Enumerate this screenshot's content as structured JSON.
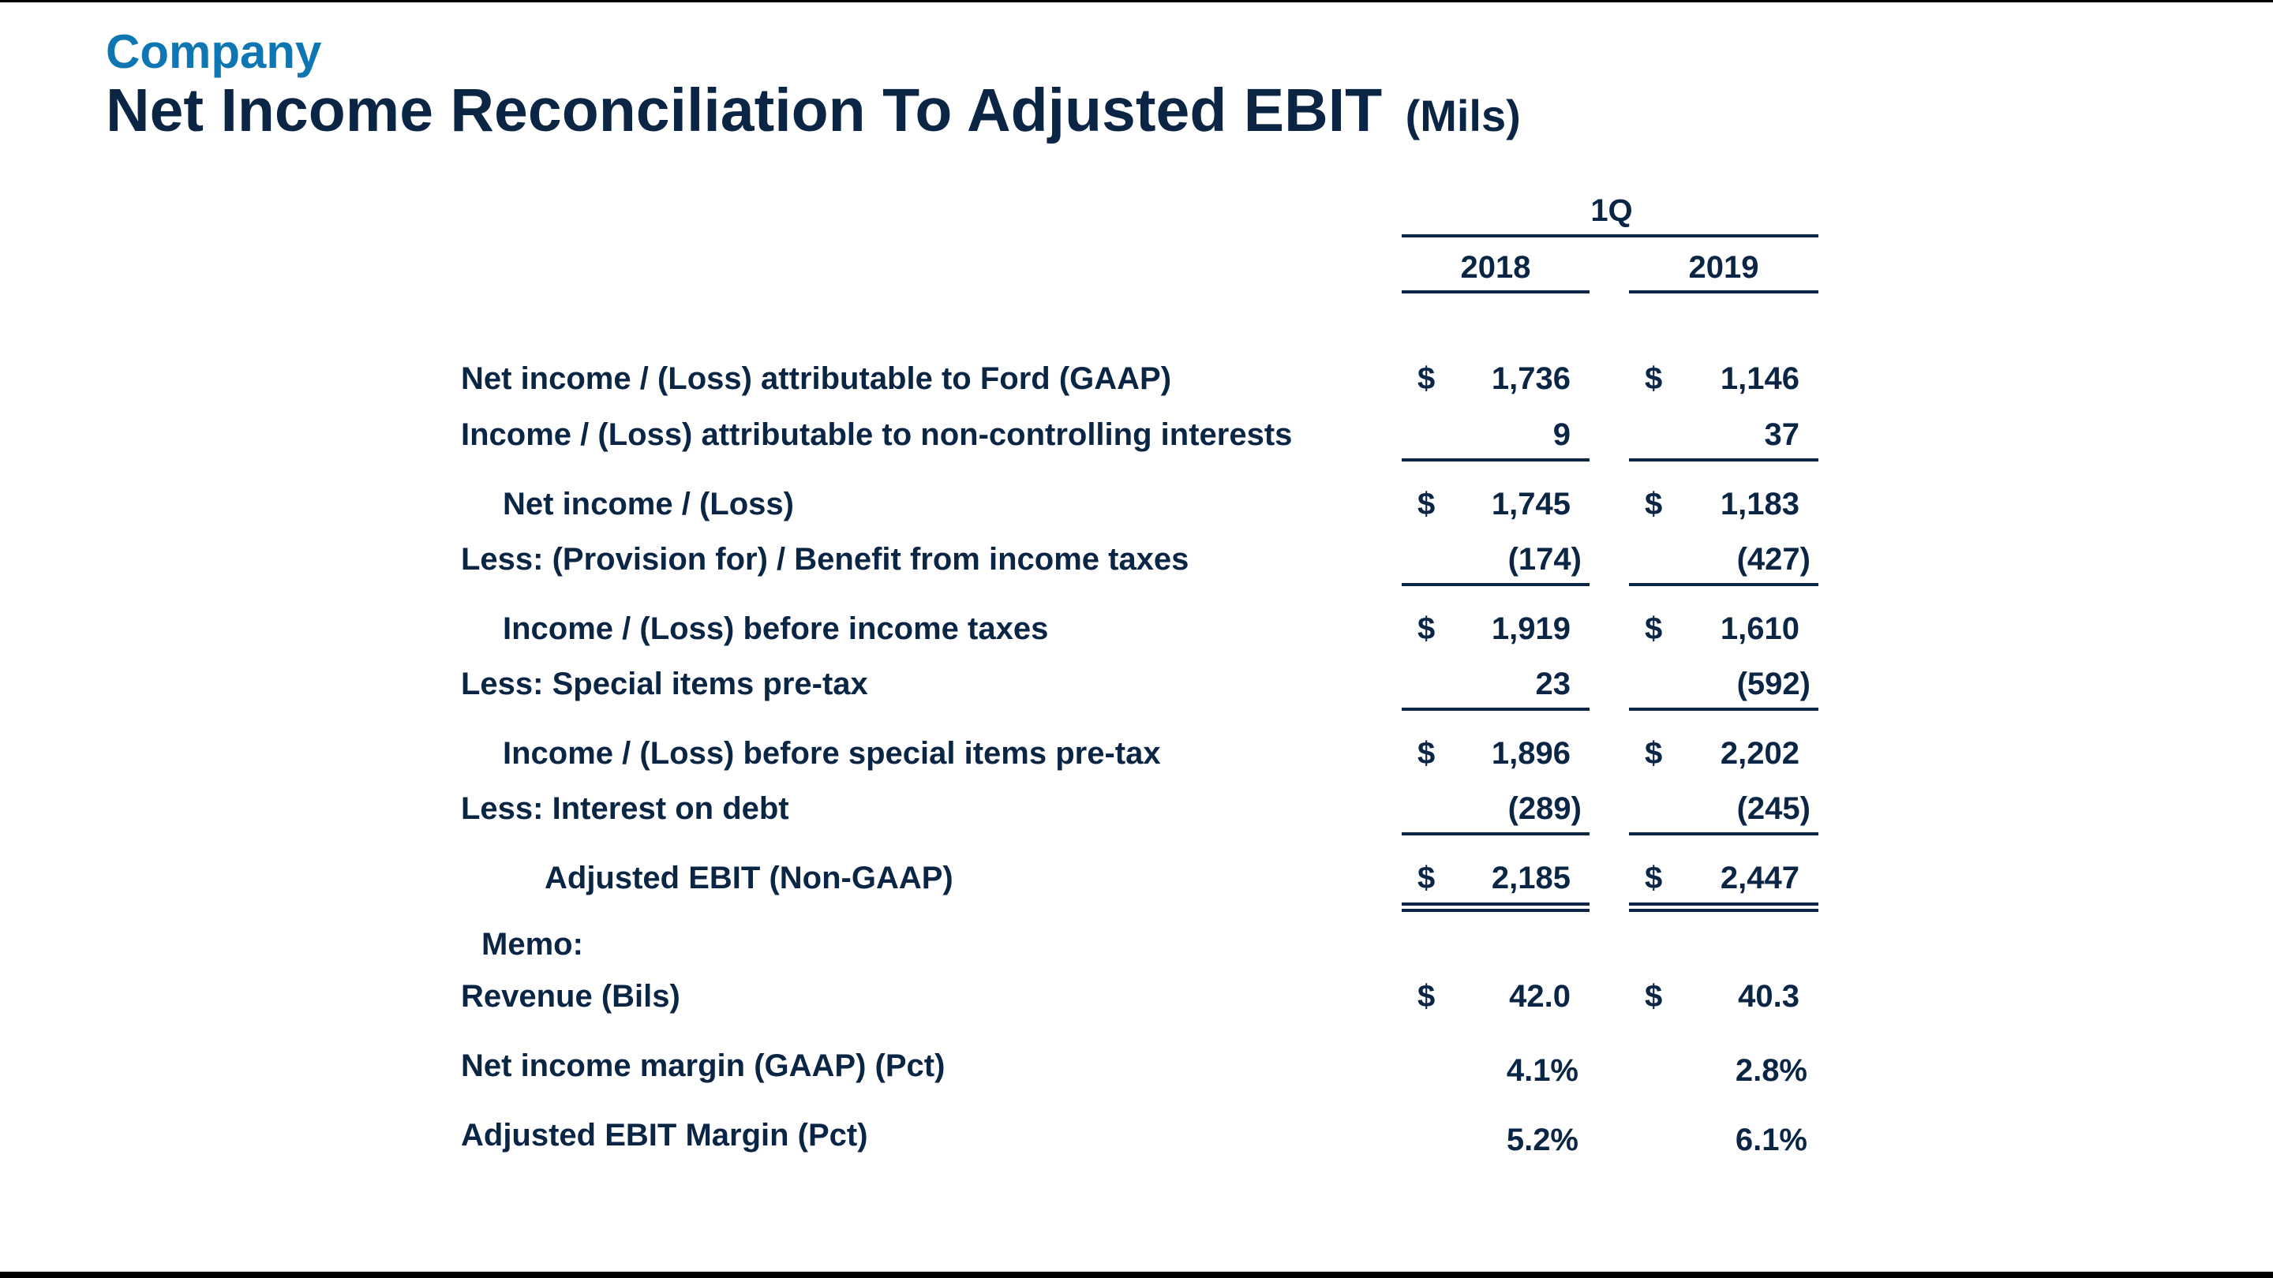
{
  "header": {
    "company": "Company",
    "title": "Net Income Reconciliation To Adjusted EBIT",
    "units": "(Mils)"
  },
  "table": {
    "period_label": "1Q",
    "years": [
      "2018",
      "2019"
    ],
    "currency_symbol": "$",
    "rows": [
      {
        "label": "Net income / (Loss) attributable to Ford (GAAP)",
        "values": [
          "1,736",
          "1,146"
        ]
      },
      {
        "label": "Income / (Loss) attributable to non-controlling interests",
        "values": [
          "9",
          "37"
        ]
      },
      {
        "label": "Net income / (Loss)",
        "values": [
          "1,745",
          "1,183"
        ]
      },
      {
        "label": "Less:  (Provision for) / Benefit from income taxes",
        "values": [
          "(174)",
          "(427)"
        ]
      },
      {
        "label": "Income / (Loss) before income taxes",
        "values": [
          "1,919",
          "1,610"
        ]
      },
      {
        "label": "Less:  Special items pre-tax",
        "values": [
          "23",
          "(592)"
        ]
      },
      {
        "label": "Income / (Loss) before special items pre-tax",
        "values": [
          "1,896",
          "2,202"
        ]
      },
      {
        "label": "Less:  Interest on debt",
        "values": [
          "(289)",
          "(245)"
        ]
      },
      {
        "label": "Adjusted EBIT (Non-GAAP)",
        "values": [
          "2,185",
          "2,447"
        ]
      }
    ],
    "memo_label": "Memo:",
    "memo_rows": [
      {
        "label": "Revenue (Bils)",
        "values": [
          "42.0",
          "40.3"
        ]
      },
      {
        "label": "Net income margin (GAAP) (Pct)",
        "values": [
          "4.1%",
          "2.8%"
        ]
      },
      {
        "label": "Adjusted EBIT Margin (Pct)",
        "values": [
          "5.2%",
          "6.1%"
        ]
      }
    ]
  }
}
